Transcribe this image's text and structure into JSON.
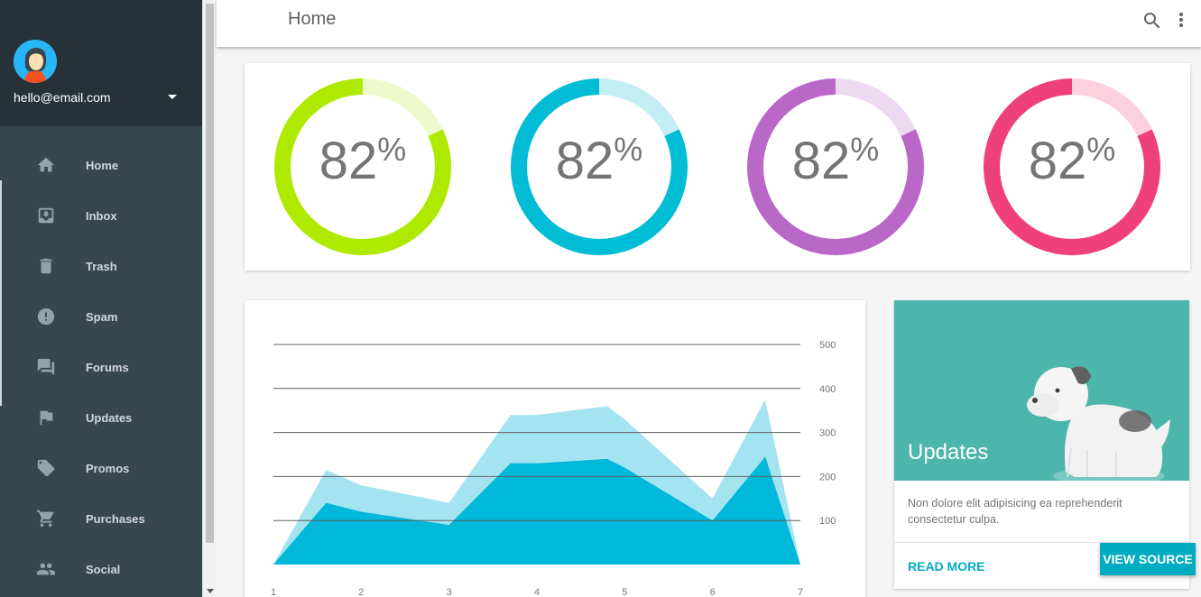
{
  "header": {
    "title": "Home"
  },
  "drawer": {
    "email": "hello@email.com",
    "items": [
      {
        "label": "Home",
        "icon": "home-icon"
      },
      {
        "label": "Inbox",
        "icon": "inbox-icon"
      },
      {
        "label": "Trash",
        "icon": "trash-icon"
      },
      {
        "label": "Spam",
        "icon": "spam-icon"
      },
      {
        "label": "Forums",
        "icon": "forum-icon"
      },
      {
        "label": "Updates",
        "icon": "flag-icon"
      },
      {
        "label": "Promos",
        "icon": "tag-icon"
      },
      {
        "label": "Purchases",
        "icon": "cart-icon"
      },
      {
        "label": "Social",
        "icon": "people-icon"
      }
    ]
  },
  "donuts": [
    {
      "value": "82",
      "unit": "%",
      "percent": 82,
      "color": "#aeea00",
      "track": "#eefacc"
    },
    {
      "value": "82",
      "unit": "%",
      "percent": 82,
      "color": "#00bcd4",
      "track": "#c2eef4"
    },
    {
      "value": "82",
      "unit": "%",
      "percent": 82,
      "color": "#ba68c8",
      "track": "#eed9f2"
    },
    {
      "value": "82",
      "unit": "%",
      "percent": 82,
      "color": "#f0407b",
      "track": "#fdd0de"
    }
  ],
  "chart_data": {
    "type": "area",
    "x": [
      1,
      1.6,
      2,
      3,
      3.7,
      4,
      4.8,
      5,
      6,
      6.6,
      7
    ],
    "x_ticks": [
      "1",
      "2",
      "3",
      "4",
      "5",
      "6",
      "7"
    ],
    "y_ticks": [
      "100",
      "200",
      "300",
      "400",
      "500"
    ],
    "ylim": [
      0,
      500
    ],
    "grid": true,
    "y_axis_position": "right",
    "series": [
      {
        "values": [
          0,
          215,
          180,
          140,
          340,
          340,
          360,
          330,
          150,
          375,
          0
        ],
        "color": "#a4e4f1"
      },
      {
        "values": [
          0,
          140,
          120,
          90,
          230,
          230,
          240,
          220,
          100,
          245,
          0
        ],
        "color": "#00b8d9"
      }
    ]
  },
  "updates": {
    "title": "Updates",
    "text": "Non dolore elit adipisicing ea reprehenderit consectetur culpa.",
    "read_more": "READ MORE",
    "hero_color": "#4db6ac"
  },
  "view_source": "VIEW SOURCE"
}
